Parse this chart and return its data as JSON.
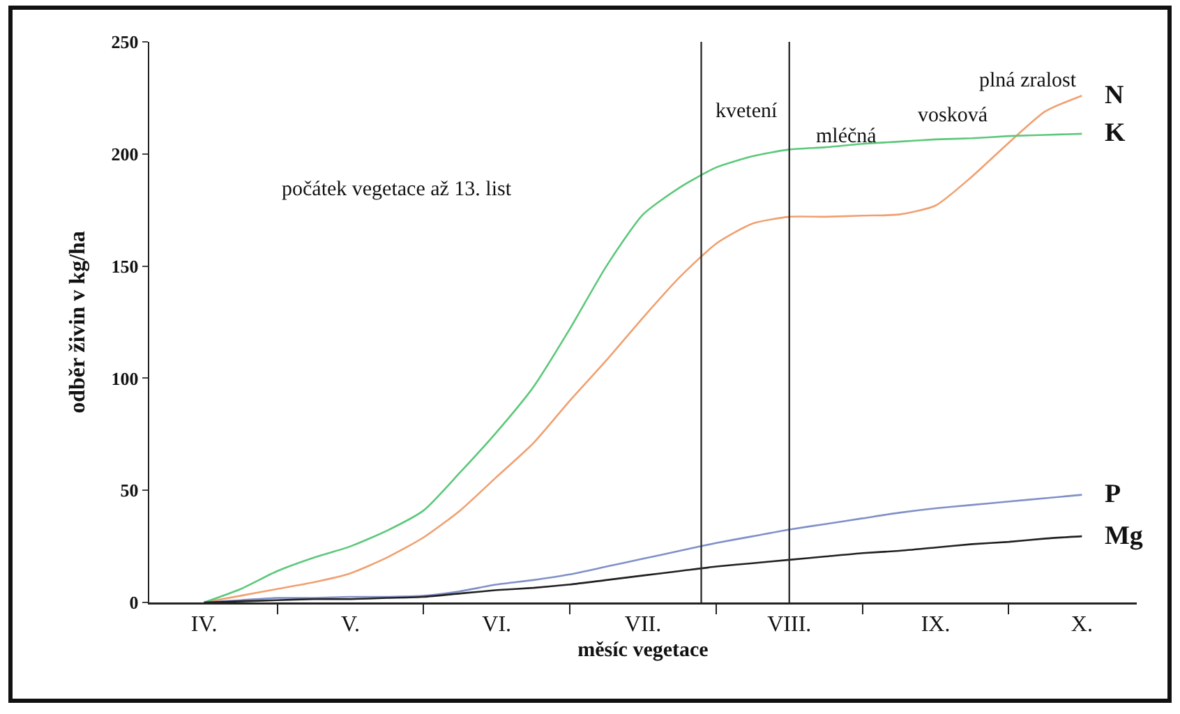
{
  "chart_data": {
    "type": "line",
    "xlabel": "měsíc vegetace",
    "ylabel": "odběr živin v kg/ha",
    "categories": [
      null,
      "IV.",
      null,
      null,
      null,
      "V.",
      null,
      null,
      null,
      "VI.",
      null,
      null,
      null,
      "VII.",
      null,
      null,
      null,
      "VIII.",
      null,
      null,
      null,
      "IX.",
      null,
      null,
      null,
      "X.",
      null
    ],
    "ylim": [
      0,
      250
    ],
    "yticks": [
      0,
      50,
      100,
      150,
      200,
      250
    ],
    "series": [
      {
        "name": "N",
        "color": "#f0a070",
        "values": [
          null,
          0,
          3,
          6,
          9,
          13,
          20,
          29,
          41,
          56,
          71,
          90,
          108,
          127,
          145,
          160,
          169,
          172,
          172,
          172.5,
          173,
          177,
          190,
          205,
          219,
          226,
          null
        ]
      },
      {
        "name": "K",
        "color": "#5cc87a",
        "values": [
          null,
          0,
          6,
          14,
          20,
          25,
          32,
          41,
          58,
          76,
          96,
          122,
          150,
          173,
          185,
          194,
          199,
          202,
          203,
          204.5,
          205.5,
          206.5,
          207,
          208,
          208.5,
          209,
          null
        ]
      },
      {
        "name": "P",
        "color": "#8090c8",
        "values": [
          null,
          0,
          1,
          2,
          2,
          2.5,
          2.5,
          3,
          5,
          8,
          10,
          12.5,
          16,
          19.5,
          23,
          26.5,
          29.5,
          32.5,
          35,
          37.5,
          40,
          42,
          43.5,
          45,
          46.5,
          48,
          null
        ]
      },
      {
        "name": "Mg",
        "color": "#202020",
        "values": [
          null,
          0,
          0.5,
          1,
          1.5,
          1.5,
          2,
          2.5,
          4,
          5.5,
          6.5,
          8,
          10,
          12,
          14,
          16,
          17.5,
          19,
          20.5,
          22,
          23,
          24.5,
          26,
          27,
          28.5,
          29.5,
          null
        ]
      }
    ],
    "ref_lines": [
      {
        "axis": "x",
        "value": "VIII.",
        "color": "#303030"
      }
    ],
    "annotations": [
      "počátek vegetace až 13. list",
      "kvetení",
      "mléčná",
      "vosková",
      "plná zralost"
    ]
  }
}
